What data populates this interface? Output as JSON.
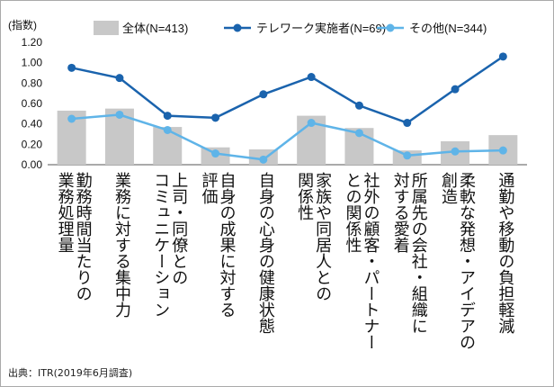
{
  "chart_data": {
    "type": "bar+line",
    "ylabel": "(指数)",
    "ylim": [
      0,
      1.2
    ],
    "yticks": [
      "1.20",
      "1.00",
      "0.80",
      "0.60",
      "0.40",
      "0.20",
      "0.00"
    ],
    "ytick_values": [
      1.2,
      1.0,
      0.8,
      0.6,
      0.4,
      0.2,
      0.0
    ],
    "categories": [
      "勤務時間当たりの\n業務処理量",
      "業務に対する集中力",
      "上司・同僚との\nコミュニケーション",
      "自身の成果に対する\n評価",
      "自身の心身の健康状態",
      "家族や同居人との\n関係性",
      "社外の顧客・パートナー\nとの関係性",
      "所属先の会社・組織に\n対する愛着",
      "柔軟な発想・アイデアの\n創造",
      "通勤や移動の負担軽減"
    ],
    "series": [
      {
        "name": "全体(N=413)",
        "kind": "bar",
        "color": "#c8c8c8",
        "values": [
          0.53,
          0.55,
          0.37,
          0.17,
          0.15,
          0.48,
          0.36,
          0.14,
          0.23,
          0.29
        ]
      },
      {
        "name": "テレワーク実施者(N=69)",
        "kind": "line",
        "color": "#1a63ad",
        "values": [
          0.95,
          0.85,
          0.48,
          0.46,
          0.69,
          0.86,
          0.58,
          0.41,
          0.74,
          1.06
        ]
      },
      {
        "name": "その他(N=344)",
        "kind": "line",
        "color": "#5fb4e8",
        "values": [
          0.45,
          0.49,
          0.34,
          0.11,
          0.05,
          0.41,
          0.31,
          0.09,
          0.13,
          0.14
        ]
      }
    ],
    "grid": false,
    "legend": "top"
  },
  "source": "出典：ITR(2019年6月調査)"
}
